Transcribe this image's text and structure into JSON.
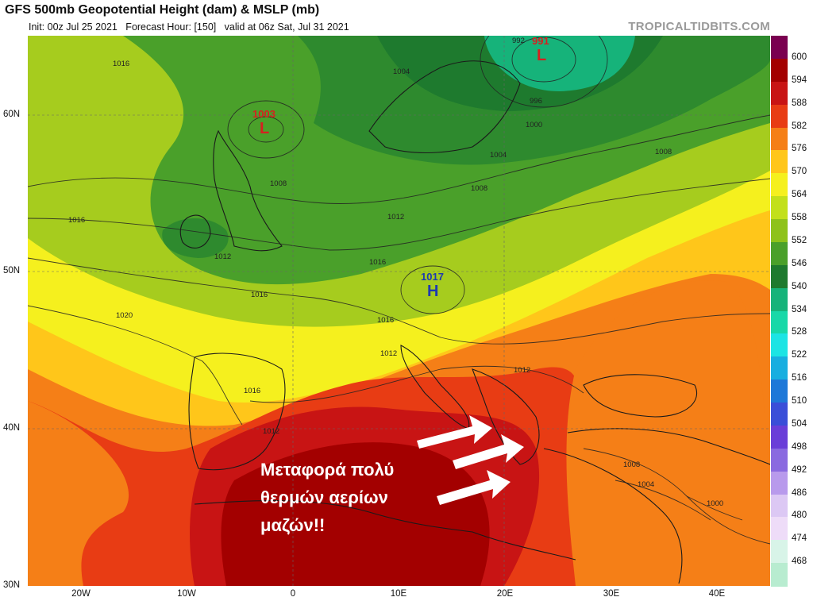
{
  "header": {
    "title": "GFS 500mb Geopotential Height (dam) & MSLP (mb)",
    "subtitle": "Init: 00z Jul 25 2021   Forecast Hour: [150]   valid at 06z Sat, Jul 31 2021",
    "brand": "TROPICALTIDBITS.COM"
  },
  "axes": {
    "lat_labels": [
      "60N",
      "50N",
      "40N",
      "30N"
    ],
    "lon_labels": [
      "20W",
      "10W",
      "0",
      "10E",
      "20E",
      "30E",
      "40E"
    ]
  },
  "colorbar": {
    "labels": [
      "600",
      "594",
      "588",
      "582",
      "576",
      "570",
      "564",
      "558",
      "552",
      "546",
      "540",
      "534",
      "528",
      "522",
      "516",
      "510",
      "504",
      "498",
      "492",
      "486",
      "480",
      "474",
      "468"
    ],
    "colors": [
      "#7a0050",
      "#a30000",
      "#c81414",
      "#e83c14",
      "#f57f17",
      "#ffc61a",
      "#f5f01e",
      "#c2e01a",
      "#8ec21a",
      "#4aa02a",
      "#1e7a2e",
      "#16b37a",
      "#18d8a8",
      "#1ce4e4",
      "#18aee0",
      "#1e78d8",
      "#3a4ed8",
      "#6a3ed8",
      "#8a6ae0",
      "#b89aec",
      "#dcc8f4",
      "#eedcf8",
      "#d8f4e8",
      "#b8ecd0"
    ]
  },
  "centers": [
    {
      "type": "L",
      "value": "1003",
      "color": "#d62020"
    },
    {
      "type": "L",
      "value": "991",
      "color": "#d62020"
    },
    {
      "type": "H",
      "value": "1017",
      "color": "#1e3ab0"
    }
  ],
  "pressure_labels": [
    "1016",
    "1004",
    "992",
    "996",
    "1000",
    "1004",
    "1008",
    "1008",
    "1008",
    "1016",
    "1012",
    "1012",
    "1016",
    "1020",
    "1016",
    "1016",
    "1012",
    "1016",
    "1012",
    "1012",
    "1008",
    "1004",
    "1000"
  ],
  "overlay_text": "Μεταφορά πολύ\nθερμών αερίων\nμαζών!!"
}
